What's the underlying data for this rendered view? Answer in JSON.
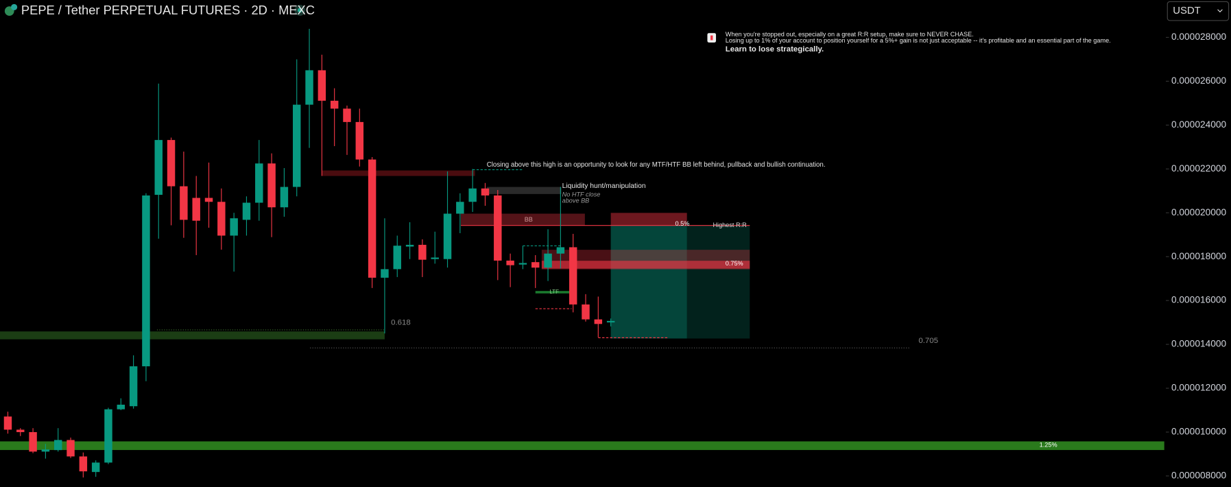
{
  "chart_data": {
    "type": "candlestick",
    "title": "PEPE / Tether PERPETUAL FUTURES · 2D · MEXC",
    "currency_button": "USDT",
    "up_color": "#089981",
    "down_color": "#f23645",
    "ylim": [
      7.5e-06,
      2.97e-05
    ],
    "yticks": [
      {
        "value": 8e-06,
        "label": "0.000008000"
      },
      {
        "value": 1e-05,
        "label": "0.000010000"
      },
      {
        "value": 1.2e-05,
        "label": "0.000012000"
      },
      {
        "value": 1.4e-05,
        "label": "0.000014000"
      },
      {
        "value": 1.6e-05,
        "label": "0.000016000"
      },
      {
        "value": 1.8e-05,
        "label": "0.000018000"
      },
      {
        "value": 2e-05,
        "label": "0.000020000"
      },
      {
        "value": 2.2e-05,
        "label": "0.000022000"
      },
      {
        "value": 2.4e-05,
        "label": "0.000024000"
      },
      {
        "value": 2.6e-05,
        "label": "0.000026000"
      },
      {
        "value": 2.8e-05,
        "label": "0.000028000"
      }
    ],
    "open": [
      1.071e-05,
      1.011e-05,
      1e-05,
      9.11e-06,
      9.18e-06,
      9.64e-06,
      8.89e-06,
      8.18e-06,
      8.61e-06,
      1.104e-05,
      1.118e-05,
      1.3e-05,
      2.082e-05,
      2.332e-05,
      2.121e-05,
      2.068e-05,
      2.068e-05,
      2.05e-05,
      1.896e-05,
      1.968e-05,
      2.046e-05,
      2.225e-05,
      2.025e-05,
      2.118e-05,
      2.493e-05,
      2.65e-05,
      2.511e-05,
      2.475e-05,
      2.414e-05,
      2.243e-05,
      1.704e-05,
      1.743e-05,
      1.846e-05,
      1.854e-05,
      1.789e-05,
      1.789e-05,
      1.996e-05,
      2.05e-05,
      2.111e-05,
      2.079e-05,
      1.782e-05,
      1.764e-05,
      1.775e-05,
      1.75e-05,
      1.814e-05,
      1.843e-05,
      1.582e-05,
      1.514e-05,
      1.5e-05
    ],
    "high": [
      1.093e-05,
      1.018e-05,
      1.018e-05,
      9.46e-06,
      1.018e-05,
      9.75e-06,
      9.07e-06,
      8.71e-06,
      1.111e-05,
      1.154e-05,
      1.35e-05,
      2.089e-05,
      2.589e-05,
      2.343e-05,
      2.279e-05,
      2.168e-05,
      2.229e-05,
      2.111e-05,
      2e-05,
      2.075e-05,
      2.332e-05,
      2.271e-05,
      2.204e-05,
      2.7e-05,
      2.839e-05,
      2.721e-05,
      2.568e-05,
      2.489e-05,
      2.475e-05,
      2.254e-05,
      1.975e-05,
      1.896e-05,
      1.957e-05,
      1.879e-05,
      1.914e-05,
      2.189e-05,
      2.089e-05,
      2.2e-05,
      2.136e-05,
      2.104e-05,
      1.814e-05,
      1.85e-05,
      1.807e-05,
      1.925e-05,
      2.118e-05,
      1.904e-05,
      1.629e-05,
      1.618e-05,
      1.518e-05
    ],
    "low": [
      9.93e-06,
      9.82e-06,
      9.04e-06,
      8.79e-06,
      9.11e-06,
      8.82e-06,
      7.93e-06,
      7.96e-06,
      8.54e-06,
      1.1e-05,
      1.107e-05,
      1.232e-05,
      1.882e-05,
      1.943e-05,
      1.886e-05,
      1.807e-05,
      1.932e-05,
      1.832e-05,
      1.732e-05,
      1.896e-05,
      1.964e-05,
      1.889e-05,
      1.982e-05,
      2.075e-05,
      2.296e-05,
      2.168e-05,
      2.304e-05,
      2.264e-05,
      2.211e-05,
      1.657e-05,
      1.45e-05,
      1.707e-05,
      1.789e-05,
      1.707e-05,
      1.768e-05,
      1.75e-05,
      1.907e-05,
      2.004e-05,
      2.032e-05,
      1.693e-05,
      1.661e-05,
      1.743e-05,
      1.657e-05,
      1.689e-05,
      1.746e-05,
      1.546e-05,
      1.504e-05,
      1.432e-05,
      1.482e-05
    ],
    "close": [
      1.011e-05,
      1e-05,
      9.11e-06,
      9.21e-06,
      9.64e-06,
      8.89e-06,
      8.21e-06,
      8.61e-06,
      1.104e-05,
      1.125e-05,
      1.3e-05,
      2.079e-05,
      2.332e-05,
      2.121e-05,
      1.968e-05,
      1.964e-05,
      2.05e-05,
      1.896e-05,
      1.975e-05,
      2.046e-05,
      2.225e-05,
      2.025e-05,
      2.118e-05,
      2.493e-05,
      2.65e-05,
      2.511e-05,
      2.475e-05,
      2.414e-05,
      2.243e-05,
      1.704e-05,
      1.743e-05,
      1.85e-05,
      1.854e-05,
      1.786e-05,
      1.796e-05,
      1.996e-05,
      2.05e-05,
      2.111e-05,
      2.079e-05,
      1.782e-05,
      1.761e-05,
      1.771e-05,
      1.75e-05,
      1.814e-05,
      1.843e-05,
      1.582e-05,
      1.514e-05,
      1.493e-05,
      1.507e-05
    ],
    "annotations": [
      "When you're stopped out, especially on a great R:R setup, make sure to NEVER CHASE.",
      "Losing up to 1% of your account to position yourself for a 5%+ gain is not just acceptable -- it's profitable and an essential part of the game.",
      "Learn to lose strategically.",
      "Closing above this high is an opportunity to look for any MTF/HTF BB left behind, pullback and bullish continuation.",
      "Liquidity hunt/manipulation",
      "No HTF close",
      "above BB",
      "BB",
      "0.5%",
      "Highest R:R",
      "0.75%",
      "LTF",
      "0.618",
      "0.705",
      "1.25%"
    ]
  }
}
